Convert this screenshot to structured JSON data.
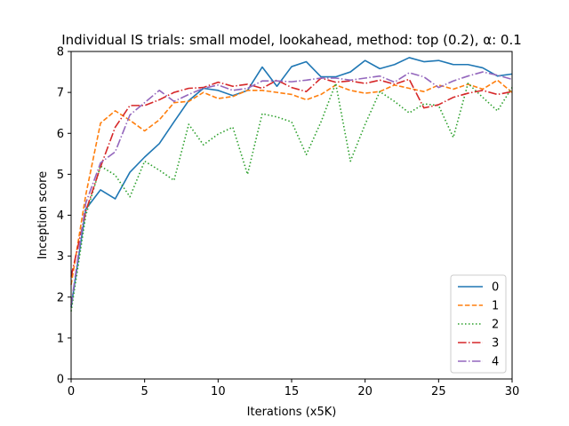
{
  "chart_data": {
    "type": "line",
    "title": "Individual IS trials: small model, lookahead, method: top (0.2), α: 0.1",
    "xlabel": "Iterations (x5K)",
    "ylabel": "Inception score",
    "xlim": [
      0,
      30
    ],
    "ylim": [
      0,
      8
    ],
    "xticks": [
      0,
      5,
      10,
      15,
      20,
      25,
      30
    ],
    "yticks": [
      0,
      1,
      2,
      3,
      4,
      5,
      6,
      7,
      8
    ],
    "grid": false,
    "legend_position": "lower-right",
    "x": [
      0,
      1,
      2,
      3,
      4,
      5,
      6,
      7,
      8,
      9,
      10,
      11,
      12,
      13,
      14,
      15,
      16,
      17,
      18,
      19,
      20,
      21,
      22,
      23,
      24,
      25,
      26,
      27,
      28,
      29,
      30
    ],
    "series": [
      {
        "name": "0",
        "color": "#1f77b4",
        "dash": "solid",
        "values": [
          1.75,
          4.15,
          4.62,
          4.4,
          5.05,
          5.42,
          5.75,
          6.28,
          6.8,
          7.1,
          7.05,
          6.92,
          7.05,
          7.62,
          7.15,
          7.63,
          7.75,
          7.38,
          7.38,
          7.5,
          7.78,
          7.58,
          7.68,
          7.85,
          7.75,
          7.78,
          7.68,
          7.68,
          7.6,
          7.4,
          7.45
        ]
      },
      {
        "name": "1",
        "color": "#ff7f0e",
        "dash": "dashed",
        "values": [
          2.3,
          4.5,
          6.25,
          6.55,
          6.32,
          6.06,
          6.33,
          6.75,
          6.78,
          7.0,
          6.85,
          6.9,
          7.05,
          7.05,
          7.0,
          6.95,
          6.82,
          6.95,
          7.18,
          7.05,
          6.98,
          7.02,
          7.18,
          7.1,
          7.02,
          7.18,
          7.08,
          7.2,
          7.08,
          7.3,
          7.0
        ]
      },
      {
        "name": "2",
        "color": "#2ca02c",
        "dash": "dotted",
        "values": [
          1.65,
          4.0,
          5.2,
          4.98,
          4.45,
          5.32,
          5.1,
          4.85,
          6.22,
          5.72,
          5.98,
          6.15,
          5.0,
          6.48,
          6.4,
          6.28,
          5.48,
          6.28,
          7.22,
          5.32,
          6.22,
          7.02,
          6.78,
          6.5,
          6.72,
          6.68,
          5.9,
          7.22,
          6.88,
          6.55,
          7.12
        ]
      },
      {
        "name": "3",
        "color": "#d62728",
        "dash": "dashdot",
        "values": [
          2.5,
          4.1,
          5.18,
          6.15,
          6.68,
          6.68,
          6.82,
          7.0,
          7.1,
          7.12,
          7.25,
          7.15,
          7.2,
          7.1,
          7.3,
          7.12,
          7.02,
          7.35,
          7.25,
          7.28,
          7.22,
          7.3,
          7.2,
          7.32,
          6.62,
          6.7,
          6.88,
          6.98,
          7.05,
          6.95,
          7.02
        ]
      },
      {
        "name": "4",
        "color": "#9467bd",
        "dash": "dashdot",
        "values": [
          1.8,
          4.3,
          5.28,
          5.55,
          6.45,
          6.75,
          7.05,
          6.78,
          6.95,
          7.1,
          7.18,
          7.05,
          7.1,
          7.28,
          7.28,
          7.26,
          7.3,
          7.35,
          7.35,
          7.3,
          7.35,
          7.4,
          7.25,
          7.48,
          7.38,
          7.12,
          7.28,
          7.4,
          7.5,
          7.42,
          7.32
        ]
      }
    ]
  }
}
